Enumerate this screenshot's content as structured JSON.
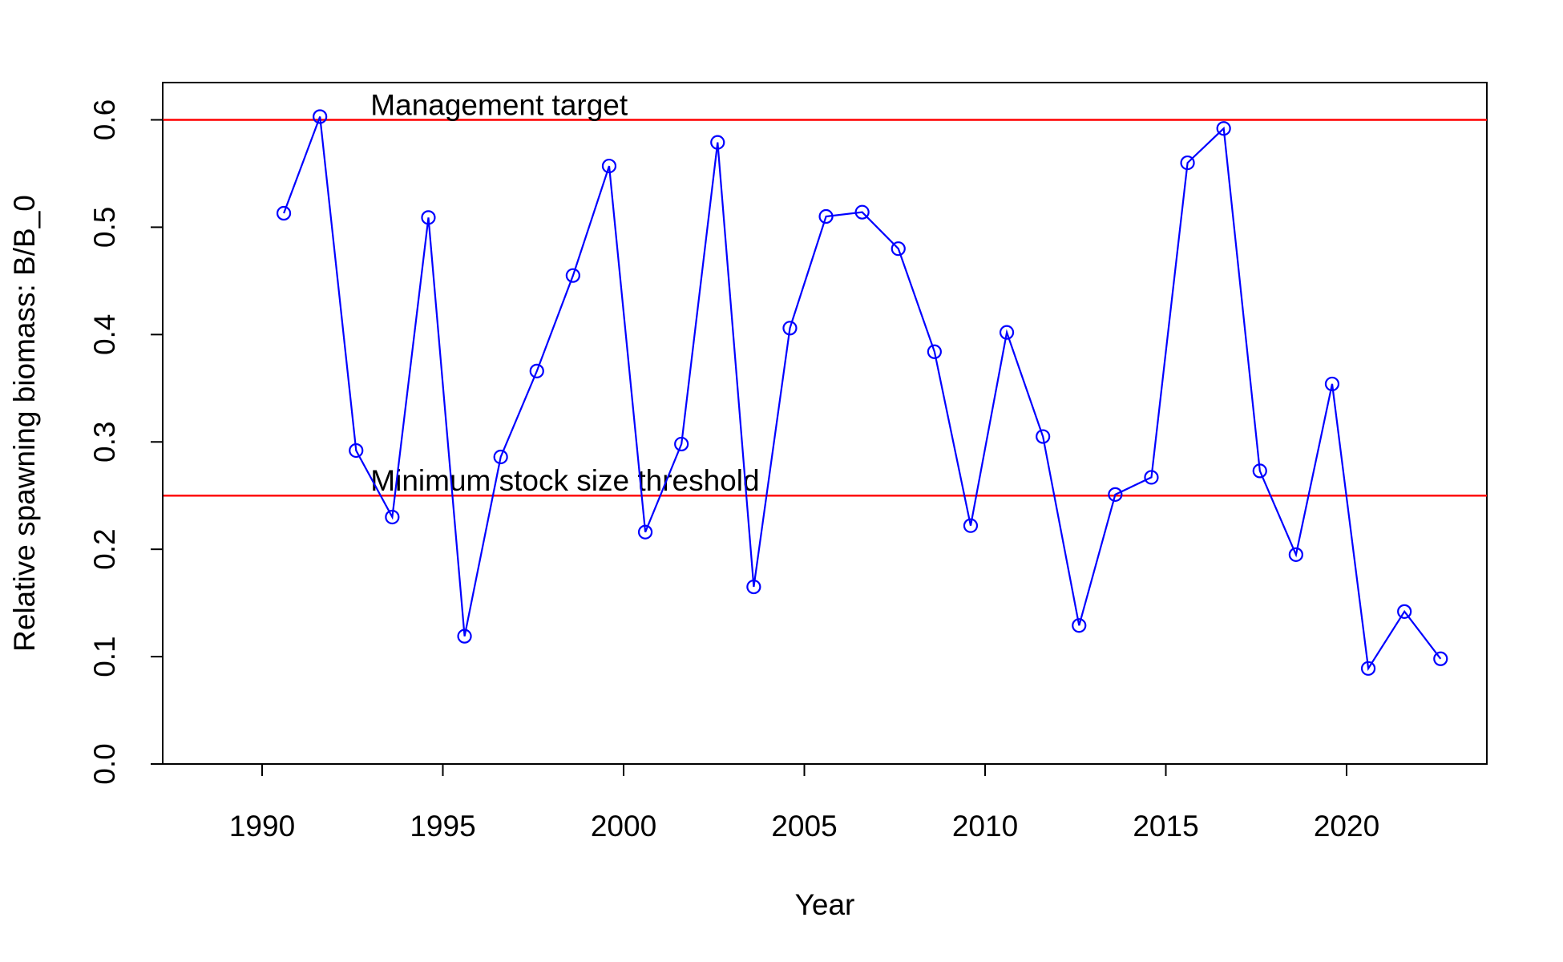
{
  "chart_data": {
    "type": "line",
    "title": "",
    "xlabel": "Year",
    "ylabel": "Relative spawning biomass: B/B_0",
    "xlim": [
      1987.2,
      2023.9
    ],
    "ylim": [
      0,
      0.6
    ],
    "x_ticks": [
      1990,
      1995,
      2000,
      2005,
      2010,
      2015,
      2020
    ],
    "y_ticks": [
      0.0,
      0.1,
      0.2,
      0.3,
      0.4,
      0.5,
      0.6
    ],
    "x_tick_labels": [
      "1990",
      "1995",
      "2000",
      "2005",
      "2010",
      "2015",
      "2020"
    ],
    "y_tick_labels": [
      "0.0",
      "0.1",
      "0.2",
      "0.3",
      "0.4",
      "0.5",
      "0.6"
    ],
    "grid": false,
    "series": [
      {
        "color": "#0000ff",
        "marker": "open-circle",
        "x": [
          1990.6,
          1991.6,
          1992.6,
          1993.6,
          1994.6,
          1995.6,
          1996.6,
          1997.6,
          1998.6,
          1999.6,
          2000.6,
          2001.6,
          2002.6,
          2003.6,
          2004.6,
          2005.6,
          2006.6,
          2007.6,
          2008.6,
          2009.6,
          2010.6,
          2011.6,
          2012.6,
          2013.6,
          2014.6,
          2015.6,
          2016.6,
          2017.6,
          2018.6,
          2019.6,
          2020.6,
          2021.6,
          2022.6
        ],
        "y": [
          0.513,
          0.603,
          0.292,
          0.23,
          0.509,
          0.119,
          0.286,
          0.366,
          0.455,
          0.557,
          0.216,
          0.298,
          0.579,
          0.165,
          0.406,
          0.51,
          0.514,
          0.48,
          0.384,
          0.222,
          0.402,
          0.305,
          0.129,
          0.251,
          0.267,
          0.56,
          0.592,
          0.273,
          0.195,
          0.354,
          0.089,
          0.142,
          0.098
        ]
      }
    ],
    "reference_lines": [
      {
        "y": 0.6,
        "color": "#ff0000",
        "label": "Management target",
        "label_x": 1993.0
      },
      {
        "y": 0.25,
        "color": "#ff0000",
        "label": "Minimum stock size threshold",
        "label_x": 1993.0
      }
    ]
  }
}
